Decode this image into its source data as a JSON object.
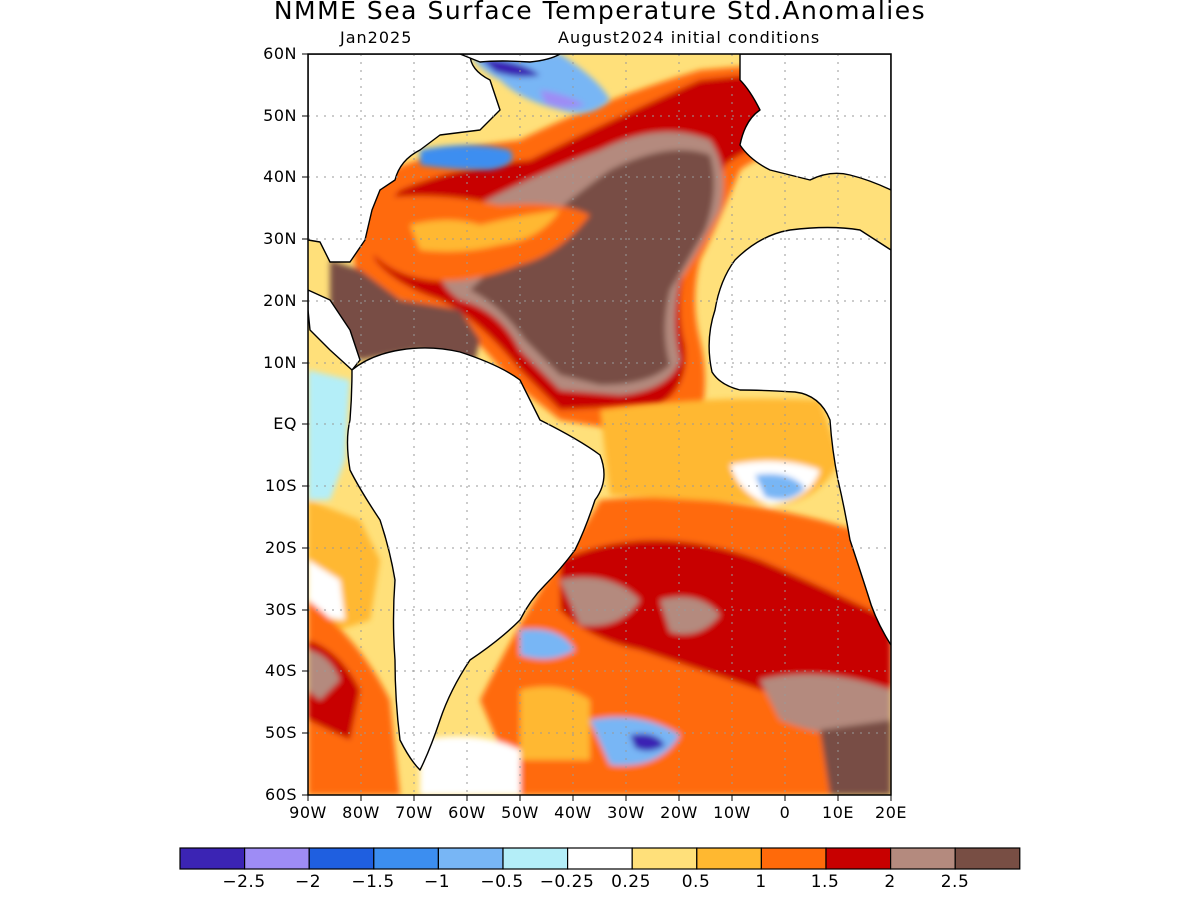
{
  "title": "NMME Sea Surface Temperature Std.Anomalies",
  "subtitle_left": "Jan2025",
  "subtitle_right": "August2024 initial conditions",
  "lat_labels": [
    "60N",
    "50N",
    "40N",
    "30N",
    "20N",
    "10N",
    "EQ",
    "10S",
    "20S",
    "30S",
    "40S",
    "50S",
    "60S"
  ],
  "lon_labels": [
    "90W",
    "80W",
    "70W",
    "60W",
    "50W",
    "40W",
    "30W",
    "20W",
    "10W",
    "0",
    "10E",
    "20E"
  ],
  "colorbar": {
    "colors": [
      "#3b24b4",
      "#9e8cf5",
      "#1f5fe0",
      "#3c8ef0",
      "#78b6f5",
      "#b4eef8",
      "#ffffff",
      "#ffe07a",
      "#ffb830",
      "#ff6a0a",
      "#c80000",
      "#b48a7e",
      "#784e44"
    ],
    "labels": [
      "−2.5",
      "−2",
      "−1.5",
      "−1",
      "−0.5",
      "−0.25",
      "0.25",
      "0.5",
      "1",
      "1.5",
      "2",
      "2.5"
    ]
  },
  "map_colors": {
    "land": "#ffffff",
    "coast": "#000000",
    "grid": "#999999",
    "neutral": "#ffffff",
    "warm_025": "#ffe07a",
    "warm_05": "#ffb830",
    "warm_1": "#ff6a0a",
    "warm_15": "#c80000",
    "warm_2": "#b48a7e",
    "warm_25": "#784e44",
    "cool_025": "#b4eef8",
    "cool_05": "#78b6f5",
    "cool_1": "#3c8ef0",
    "cool_15": "#1f5fe0",
    "cool_2": "#9e8cf5",
    "cool_25": "#3b24b4"
  }
}
